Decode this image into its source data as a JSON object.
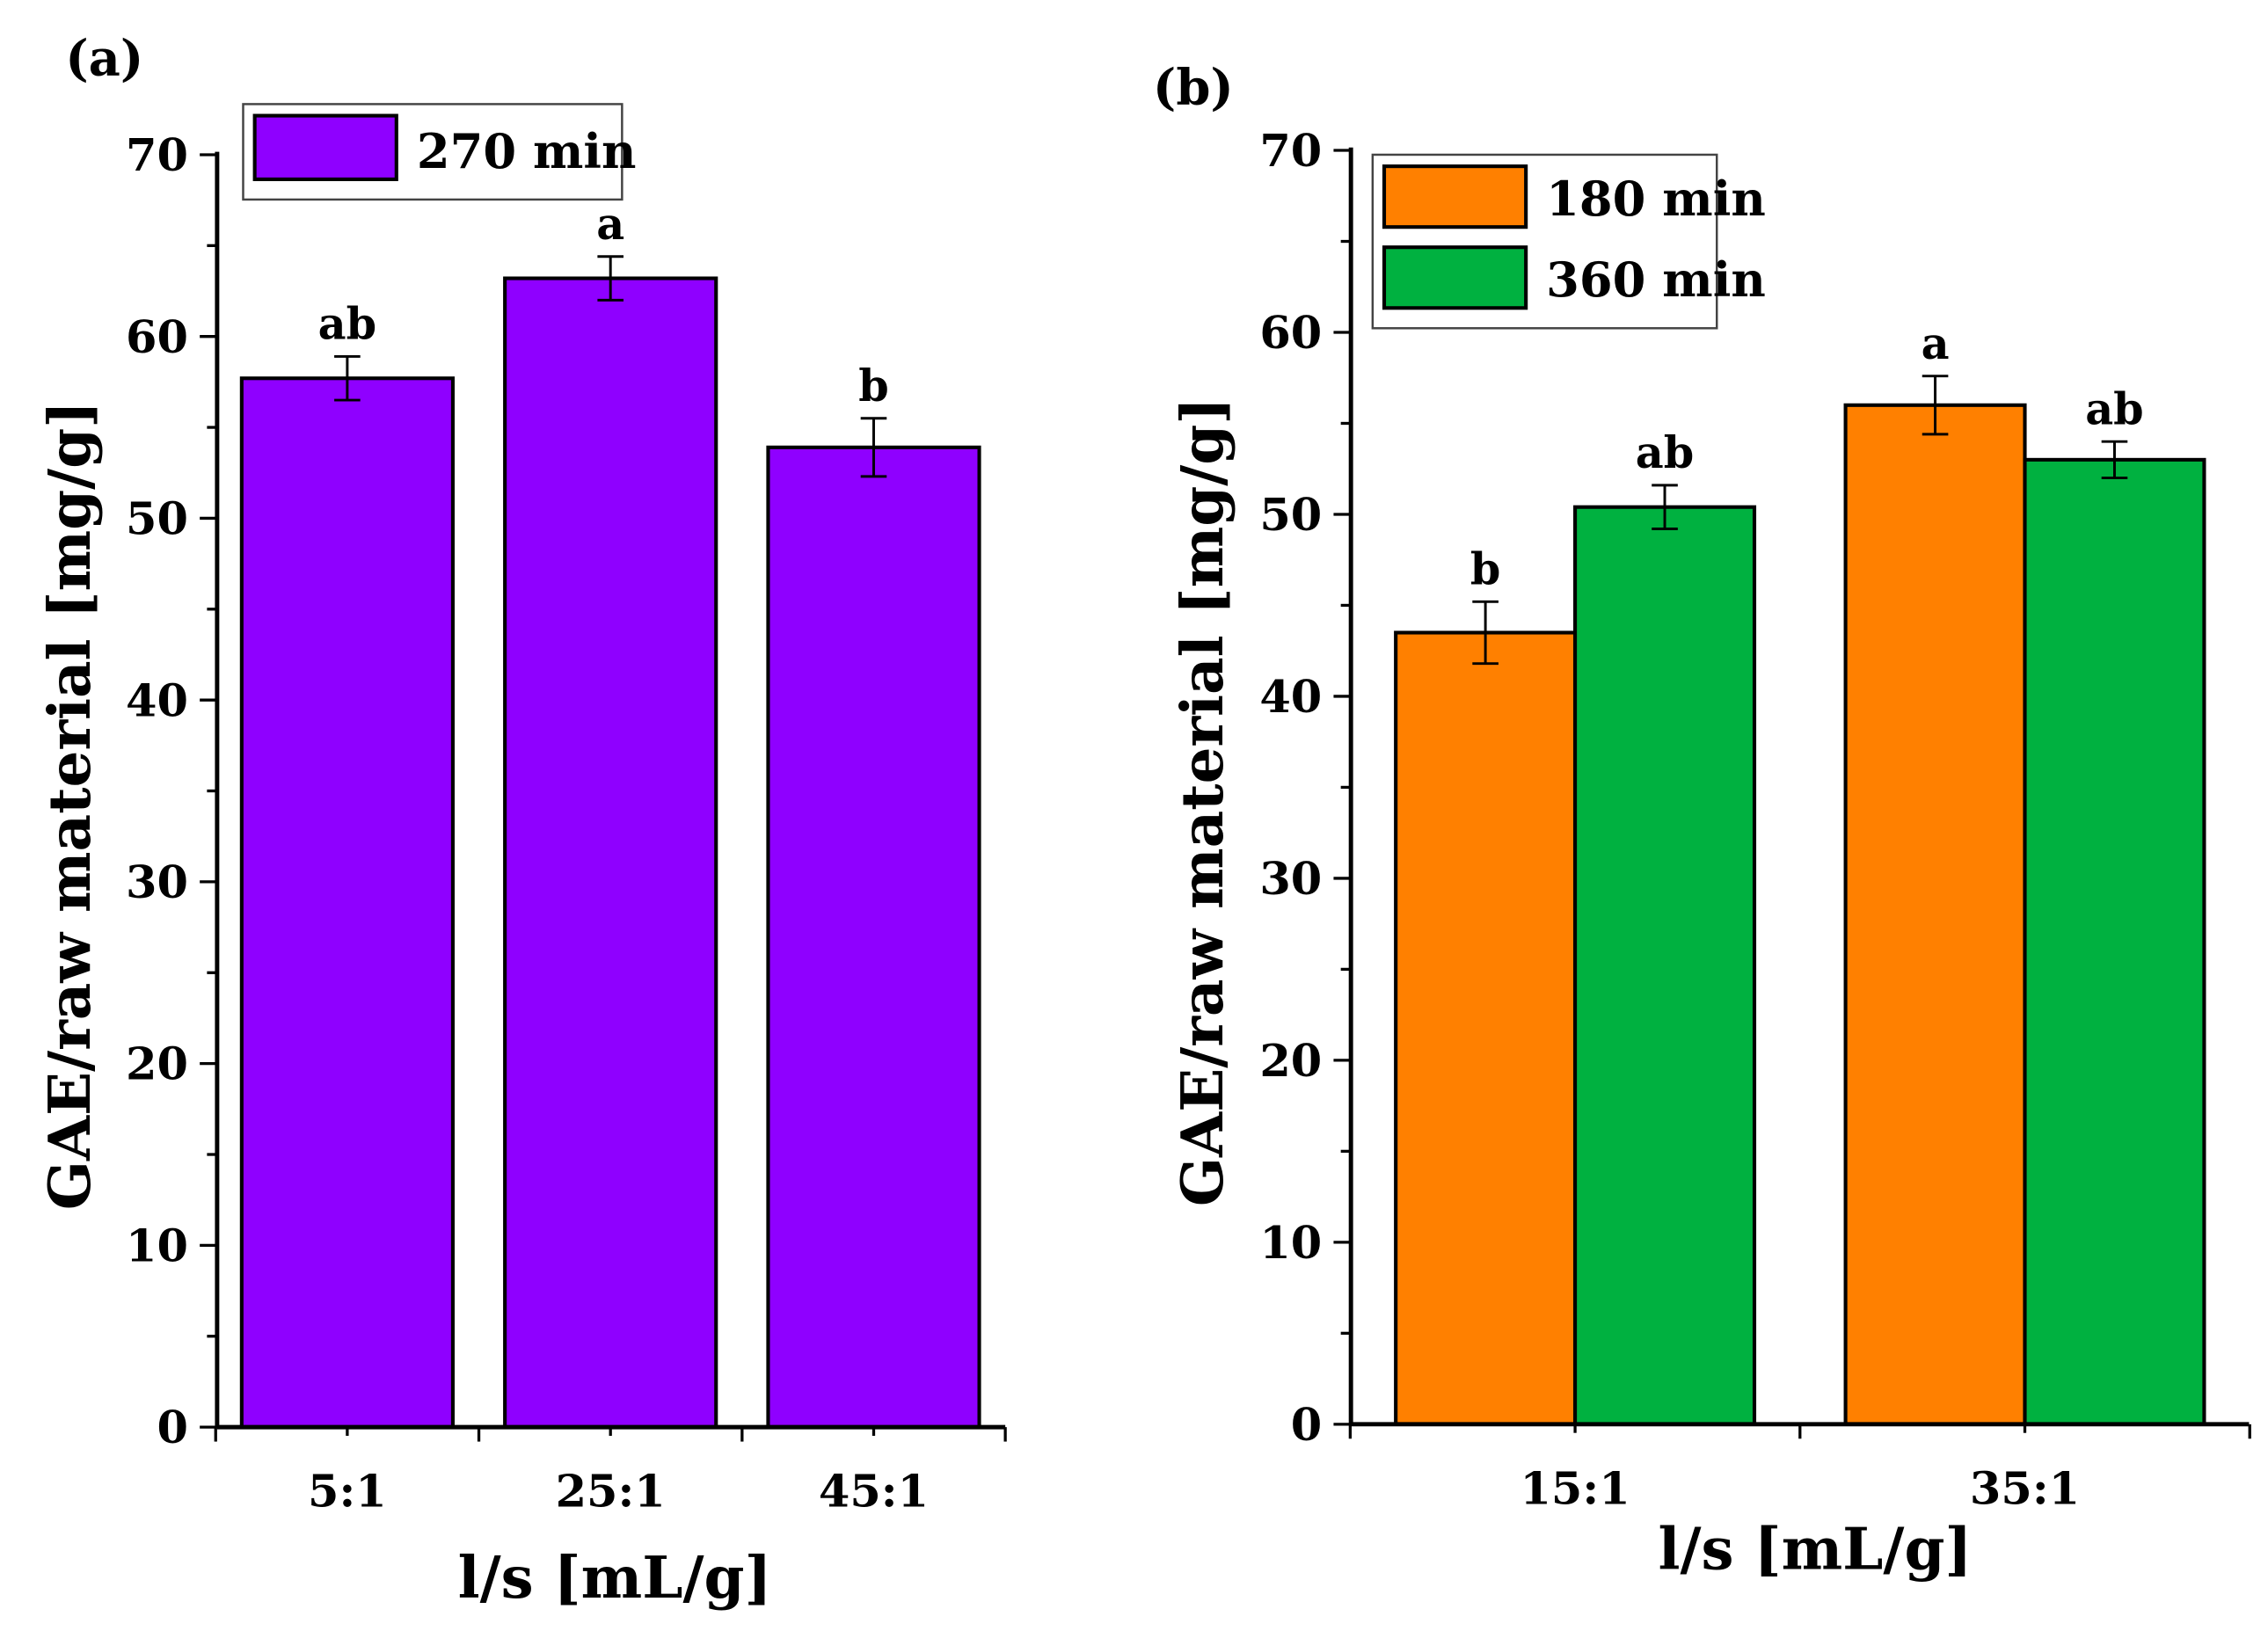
{
  "chart_data": [
    {
      "panel_label": "(a)",
      "type": "bar",
      "xlabel": "l/s [mL/g]",
      "ylabel": "GAE/raw material [mg/g]",
      "ylim": [
        0,
        70
      ],
      "yticks": [
        0,
        10,
        20,
        30,
        40,
        50,
        60,
        70
      ],
      "categories": [
        "5:1",
        "25:1",
        "45:1"
      ],
      "legend_position": "top-left",
      "series": [
        {
          "name": "270 min",
          "color": "#8F00FF",
          "values": [
            57.7,
            63.2,
            53.9
          ],
          "errors": [
            1.2,
            1.2,
            1.6
          ],
          "letters": [
            "ab",
            "a",
            "b"
          ]
        }
      ]
    },
    {
      "panel_label": "(b)",
      "type": "bar",
      "xlabel": "l/s [mL/g]",
      "ylabel": "GAE/raw material [mg/g]",
      "ylim": [
        0,
        70
      ],
      "yticks": [
        0,
        10,
        20,
        30,
        40,
        50,
        60,
        70
      ],
      "categories": [
        "15:1",
        "35:1"
      ],
      "legend_position": "top-left",
      "series": [
        {
          "name": "180 min",
          "color": "#FF8000",
          "values": [
            43.5,
            56.0
          ],
          "errors": [
            1.7,
            1.6
          ],
          "letters": [
            "b",
            "a"
          ]
        },
        {
          "name": "360 min",
          "color": "#00B140",
          "values": [
            50.4,
            53.0
          ],
          "errors": [
            1.2,
            1.0
          ],
          "letters": [
            "ab",
            "ab"
          ]
        }
      ]
    }
  ]
}
